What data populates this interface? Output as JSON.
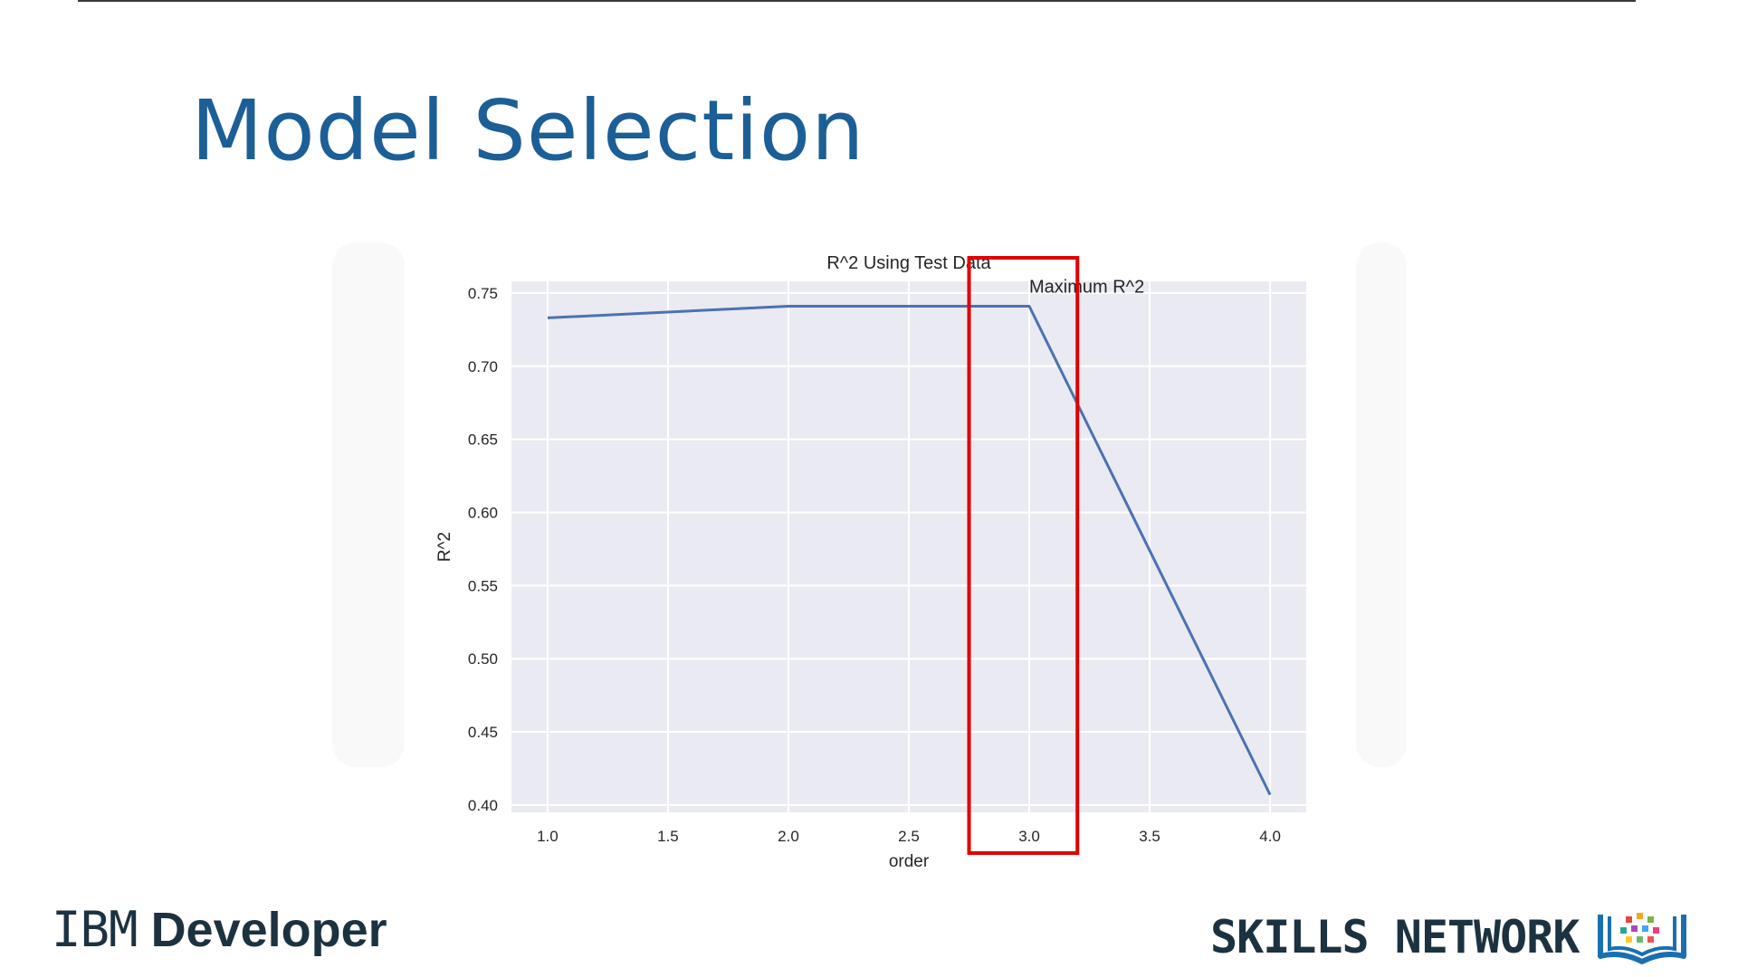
{
  "slide": {
    "title": "Model Selection"
  },
  "branding": {
    "left_prefix": "IBM",
    "left_suffix": "Developer",
    "right": "SKILLS NETWORK",
    "logo_icon": "open-book-dots-icon"
  },
  "colors": {
    "title": "#1c5f96",
    "line": "#4c72b0",
    "plot_bg": "#eaeaf2",
    "highlight": "#e00000",
    "brand": "#1d3240"
  },
  "chart_data": {
    "type": "line",
    "title": "R^2 Using Test Data",
    "xlabel": "order",
    "ylabel": "R^2",
    "x": [
      1,
      2,
      3,
      4
    ],
    "series": [
      {
        "values": [
          0.733,
          0.741,
          0.741,
          0.407
        ]
      }
    ],
    "xlim": [
      0.85,
      4.15
    ],
    "ylim": [
      0.395,
      0.758
    ],
    "xticks": [
      1.0,
      1.5,
      2.0,
      2.5,
      3.0,
      3.5,
      4.0
    ],
    "xtick_labels": [
      "1.0",
      "1.5",
      "2.0",
      "2.5",
      "3.0",
      "3.5",
      "4.0"
    ],
    "yticks": [
      0.4,
      0.45,
      0.5,
      0.55,
      0.6,
      0.65,
      0.7,
      0.75
    ],
    "ytick_labels": [
      "0.40",
      "0.45",
      "0.50",
      "0.55",
      "0.60",
      "0.65",
      "0.70",
      "0.75"
    ],
    "grid": true,
    "annotation": {
      "text": "Maximum R^2",
      "x": 3.0,
      "y": 0.741
    },
    "highlight_band": {
      "x_from": 2.75,
      "x_to": 3.2
    }
  }
}
